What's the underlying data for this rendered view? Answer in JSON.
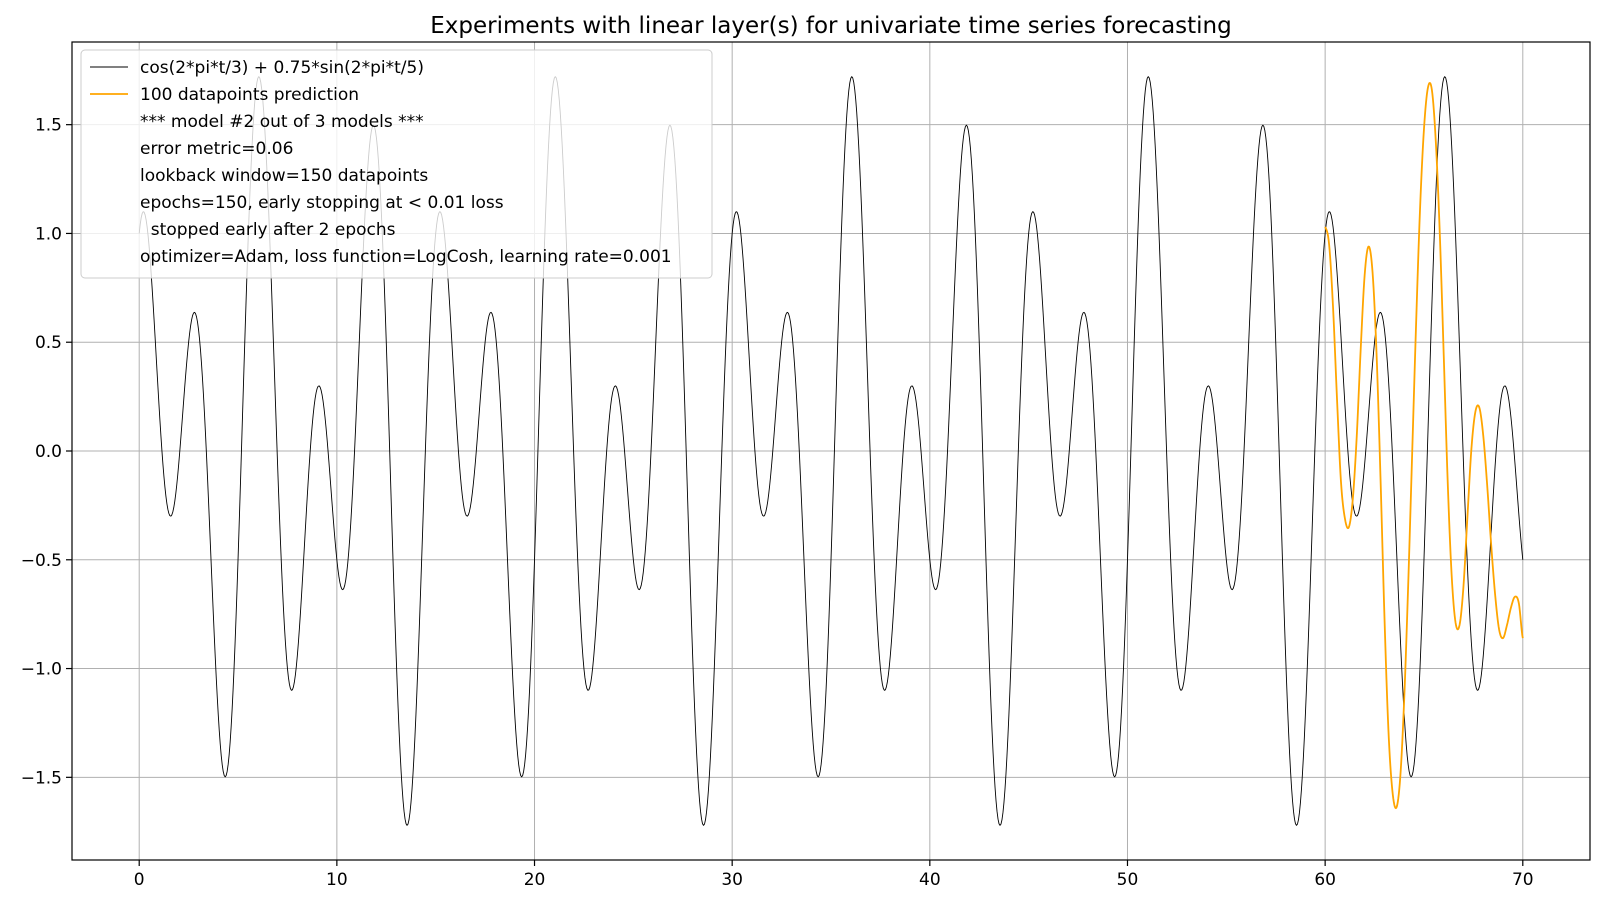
{
  "chart_data": {
    "type": "line",
    "title": "Experiments with linear layer(s) for univariate time series forecasting",
    "xlabel": "",
    "ylabel": "",
    "xlim": [
      -3.4,
      73.4
    ],
    "ylim": [
      -1.88,
      1.88
    ],
    "x_ticks": [
      0,
      10,
      20,
      30,
      40,
      50,
      60,
      70
    ],
    "x_tick_labels": [
      "0",
      "10",
      "20",
      "30",
      "40",
      "50",
      "60",
      "70"
    ],
    "y_ticks": [
      -1.5,
      -1.0,
      -0.5,
      0.0,
      0.5,
      1.0,
      1.5
    ],
    "y_tick_labels": [
      "−1.5",
      "−1.0",
      "−0.5",
      "0.0",
      "0.5",
      "1.0",
      "1.5"
    ],
    "grid": true,
    "legend_position": "top-left",
    "series": [
      {
        "name": "cos(2*pi*t/3) + 0.75*sin(2*pi*t/5)",
        "color": "#000000",
        "line_width": 0.9,
        "x_range": [
          0,
          70
        ],
        "samples": 1401,
        "formula": "cos(2*pi*t/3) + 0.75*sin(2*pi*t/5)"
      },
      {
        "name": "100 datapoints prediction",
        "color": "#ffa500",
        "line_width": 1.8,
        "x": [
          60.0,
          60.2,
          60.4,
          60.6,
          60.8,
          61.0,
          61.2,
          61.4,
          61.6,
          61.8,
          62.0,
          62.2,
          62.4,
          62.6,
          62.8,
          63.0,
          63.2,
          63.4,
          63.6,
          63.8,
          64.0,
          64.2,
          64.4,
          64.6,
          64.8,
          65.0,
          65.2,
          65.4,
          65.6,
          65.8,
          66.0,
          66.2,
          66.4,
          66.6,
          66.8,
          67.0,
          67.2,
          67.4,
          67.6,
          67.8,
          68.0,
          68.2,
          68.4,
          68.6,
          68.8,
          69.0,
          69.2,
          69.4,
          69.6,
          69.8,
          70.0
        ],
        "y": [
          1.03,
          0.95,
          0.66,
          0.24,
          -0.14,
          -0.31,
          -0.35,
          -0.22,
          0.07,
          0.47,
          0.81,
          0.94,
          0.82,
          0.45,
          -0.12,
          -0.76,
          -1.28,
          -1.56,
          -1.64,
          -1.5,
          -1.14,
          -0.62,
          -0.02,
          0.58,
          1.11,
          1.48,
          1.67,
          1.66,
          1.42,
          1.0,
          0.44,
          -0.14,
          -0.57,
          -0.79,
          -0.8,
          -0.62,
          -0.3,
          0.01,
          0.18,
          0.2,
          0.07,
          -0.16,
          -0.43,
          -0.66,
          -0.82,
          -0.86,
          -0.8,
          -0.72,
          -0.67,
          -0.7,
          -0.86
        ]
      }
    ],
    "legend_extra_lines": [
      "*** model #2 out of 3 models ***",
      "error metric=0.06",
      "lookback window=150 datapoints",
      "epochs=150, early stopping at < 0.01 loss",
      "  stopped early after 2 epochs",
      "optimizer=Adam, loss function=LogCosh, learning rate=0.001"
    ]
  }
}
